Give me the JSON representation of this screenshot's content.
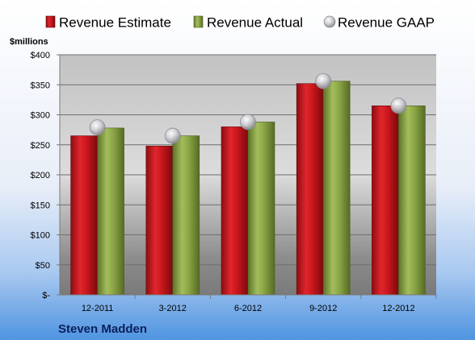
{
  "chart_data": {
    "type": "bar",
    "company": "Steven Madden",
    "ylabel": "$millions",
    "categories": [
      "12-2011",
      "3-2012",
      "6-2012",
      "9-2012",
      "12-2012"
    ],
    "series": [
      {
        "name": "Revenue Estimate",
        "kind": "bar",
        "color": "#c0141b",
        "values": [
          265,
          248,
          280,
          352,
          315
        ]
      },
      {
        "name": "Revenue Actual",
        "kind": "bar",
        "color": "#7f9a3c",
        "values": [
          278,
          265,
          288,
          356,
          315
        ]
      },
      {
        "name": "Revenue GAAP",
        "kind": "marker",
        "color": "#b8b8c0",
        "values": [
          279,
          265,
          288,
          356,
          315
        ]
      }
    ],
    "ylim": [
      0,
      400
    ],
    "yticks": [
      0,
      50,
      100,
      150,
      200,
      250,
      300,
      350,
      400
    ],
    "ytick_labels": [
      "$-",
      "$50",
      "$100",
      "$150",
      "$200",
      "$250",
      "$300",
      "$350",
      "$400"
    ],
    "legend_position": "top",
    "grid": true
  }
}
